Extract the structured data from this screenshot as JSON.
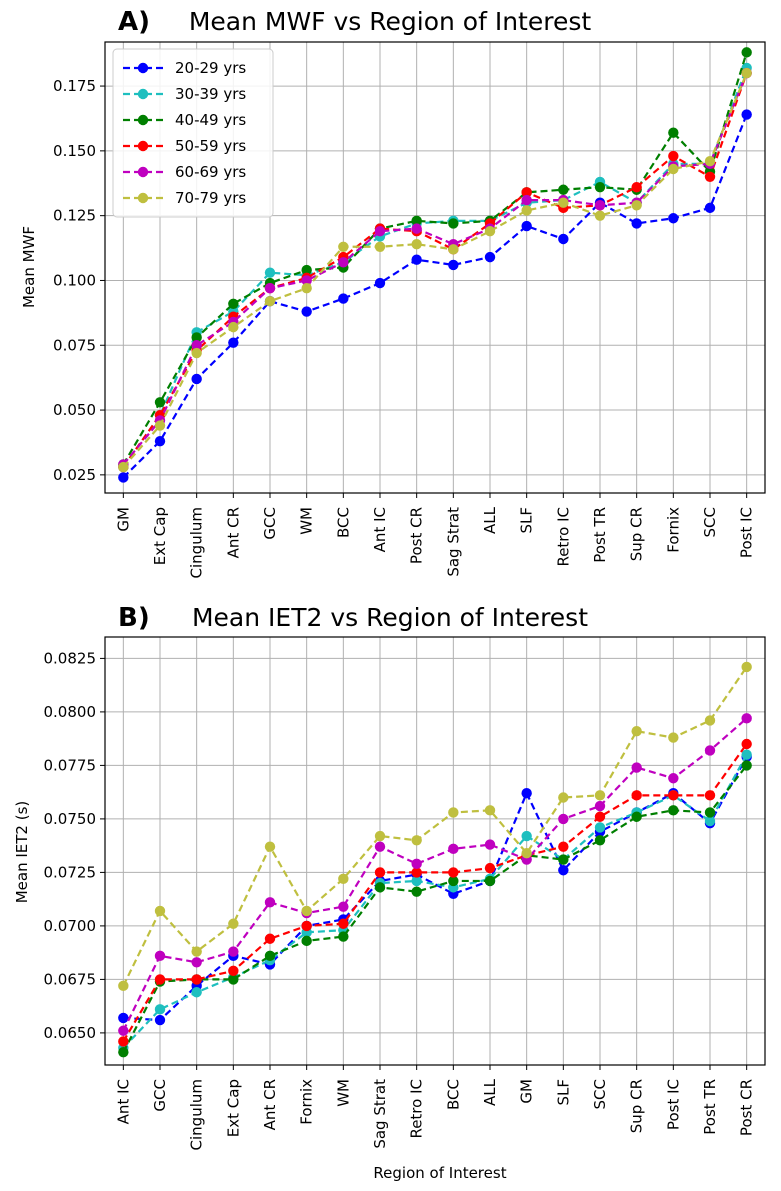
{
  "chart_data": [
    {
      "type": "line",
      "panel_label": "A)",
      "title": "Mean MWF vs Region of Interest",
      "xlabel": "",
      "ylabel": "Mean MWF",
      "ylim": [
        0.018,
        0.192
      ],
      "yticks": [
        0.025,
        0.05,
        0.075,
        0.1,
        0.125,
        0.15,
        0.175
      ],
      "ytick_labels": [
        "0.025",
        "0.050",
        "0.075",
        "0.100",
        "0.125",
        "0.150",
        "0.175"
      ],
      "grid": true,
      "legend": "top-left",
      "categories": [
        "GM",
        "Ext Cap",
        "Cingulum",
        "Ant CR",
        "GCC",
        "WM",
        "BCC",
        "Ant IC",
        "Post CR",
        "Sag Strat",
        "ALL",
        "SLF",
        "Retro IC",
        "Post TR",
        "Sup CR",
        "Fornix",
        "SCC",
        "Post IC"
      ],
      "series": [
        {
          "name": "20-29 yrs",
          "color": "#0000ff",
          "values": [
            0.024,
            0.038,
            0.062,
            0.076,
            0.092,
            0.088,
            0.093,
            0.099,
            0.108,
            0.106,
            0.109,
            0.121,
            0.116,
            0.13,
            0.122,
            0.124,
            0.128,
            0.164
          ]
        },
        {
          "name": "30-39 yrs",
          "color": "#1ebfbf",
          "values": [
            0.028,
            0.048,
            0.08,
            0.088,
            0.103,
            0.102,
            0.107,
            0.117,
            0.122,
            0.123,
            0.123,
            0.13,
            0.131,
            0.138,
            0.13,
            0.145,
            0.145,
            0.182
          ]
        },
        {
          "name": "40-49 yrs",
          "color": "#007f00",
          "values": [
            0.029,
            0.053,
            0.078,
            0.091,
            0.099,
            0.104,
            0.105,
            0.12,
            0.123,
            0.122,
            0.123,
            0.134,
            0.135,
            0.136,
            0.135,
            0.157,
            0.142,
            0.188
          ]
        },
        {
          "name": "50-59 yrs",
          "color": "#ff0000",
          "values": [
            0.028,
            0.048,
            0.073,
            0.086,
            0.097,
            0.101,
            0.109,
            0.12,
            0.119,
            0.112,
            0.122,
            0.134,
            0.128,
            0.129,
            0.136,
            0.148,
            0.14,
            0.18
          ]
        },
        {
          "name": "60-69 yrs",
          "color": "#bf00bf",
          "values": [
            0.029,
            0.046,
            0.075,
            0.084,
            0.097,
            0.1,
            0.107,
            0.119,
            0.12,
            0.114,
            0.12,
            0.131,
            0.131,
            0.129,
            0.13,
            0.144,
            0.145,
            0.18
          ]
        },
        {
          "name": "70-79 yrs",
          "color": "#bfbf3f",
          "values": [
            0.028,
            0.044,
            0.072,
            0.082,
            0.092,
            0.097,
            0.113,
            0.113,
            0.114,
            0.112,
            0.119,
            0.127,
            0.13,
            0.125,
            0.129,
            0.143,
            0.146,
            0.18
          ]
        }
      ]
    },
    {
      "type": "line",
      "panel_label": "B)",
      "title": "Mean IET2 vs Region of Interest",
      "xlabel": "Region of Interest",
      "ylabel": "Mean IET2 (s)",
      "ylim": [
        0.0635,
        0.0835
      ],
      "yticks": [
        0.065,
        0.0675,
        0.07,
        0.0725,
        0.075,
        0.0775,
        0.08,
        0.0825
      ],
      "ytick_labels": [
        "0.0650",
        "0.0675",
        "0.0700",
        "0.0725",
        "0.0750",
        "0.0775",
        "0.0800",
        "0.0825"
      ],
      "grid": true,
      "legend": "none",
      "categories": [
        "Ant IC",
        "GCC",
        "Cingulum",
        "Ext Cap",
        "Ant CR",
        "Fornix",
        "WM",
        "Sag Strat",
        "Retro IC",
        "BCC",
        "ALL",
        "GM",
        "SLF",
        "SCC",
        "Sup CR",
        "Post IC",
        "Post TR",
        "Post CR"
      ],
      "series": [
        {
          "name": "20-29 yrs",
          "color": "#0000ff",
          "values": [
            0.0657,
            0.0656,
            0.0672,
            0.0686,
            0.0682,
            0.07,
            0.0703,
            0.0721,
            0.0724,
            0.0715,
            0.0721,
            0.0762,
            0.0726,
            0.0744,
            0.0753,
            0.0762,
            0.0748,
            0.0779
          ]
        },
        {
          "name": "30-39 yrs",
          "color": "#1ebfbf",
          "values": [
            0.0643,
            0.0661,
            0.0669,
            0.0676,
            0.0684,
            0.0697,
            0.0698,
            0.072,
            0.0721,
            0.0718,
            0.0722,
            0.0742,
            0.0731,
            0.0746,
            0.0753,
            0.0761,
            0.0749,
            0.078
          ]
        },
        {
          "name": "40-49 yrs",
          "color": "#007f00",
          "values": [
            0.0641,
            0.0674,
            0.0675,
            0.0675,
            0.0686,
            0.0693,
            0.0695,
            0.0718,
            0.0716,
            0.0721,
            0.0721,
            0.0733,
            0.0731,
            0.074,
            0.0751,
            0.0754,
            0.0753,
            0.0775
          ]
        },
        {
          "name": "50-59 yrs",
          "color": "#ff0000",
          "values": [
            0.0646,
            0.0675,
            0.0675,
            0.0679,
            0.0694,
            0.07,
            0.0701,
            0.0725,
            0.0725,
            0.0725,
            0.0727,
            0.0733,
            0.0737,
            0.0751,
            0.0761,
            0.0761,
            0.0761,
            0.0785
          ]
        },
        {
          "name": "60-69 yrs",
          "color": "#bf00bf",
          "values": [
            0.0651,
            0.0686,
            0.0683,
            0.0688,
            0.0711,
            0.0706,
            0.0709,
            0.0737,
            0.0729,
            0.0736,
            0.0738,
            0.0731,
            0.075,
            0.0756,
            0.0774,
            0.0769,
            0.0782,
            0.0797
          ]
        },
        {
          "name": "70-79 yrs",
          "color": "#bfbf3f",
          "values": [
            0.0672,
            0.0707,
            0.0688,
            0.0701,
            0.0737,
            0.0707,
            0.0722,
            0.0742,
            0.074,
            0.0753,
            0.0754,
            0.0734,
            0.076,
            0.0761,
            0.0791,
            0.0788,
            0.0796,
            0.0821
          ]
        }
      ]
    }
  ]
}
